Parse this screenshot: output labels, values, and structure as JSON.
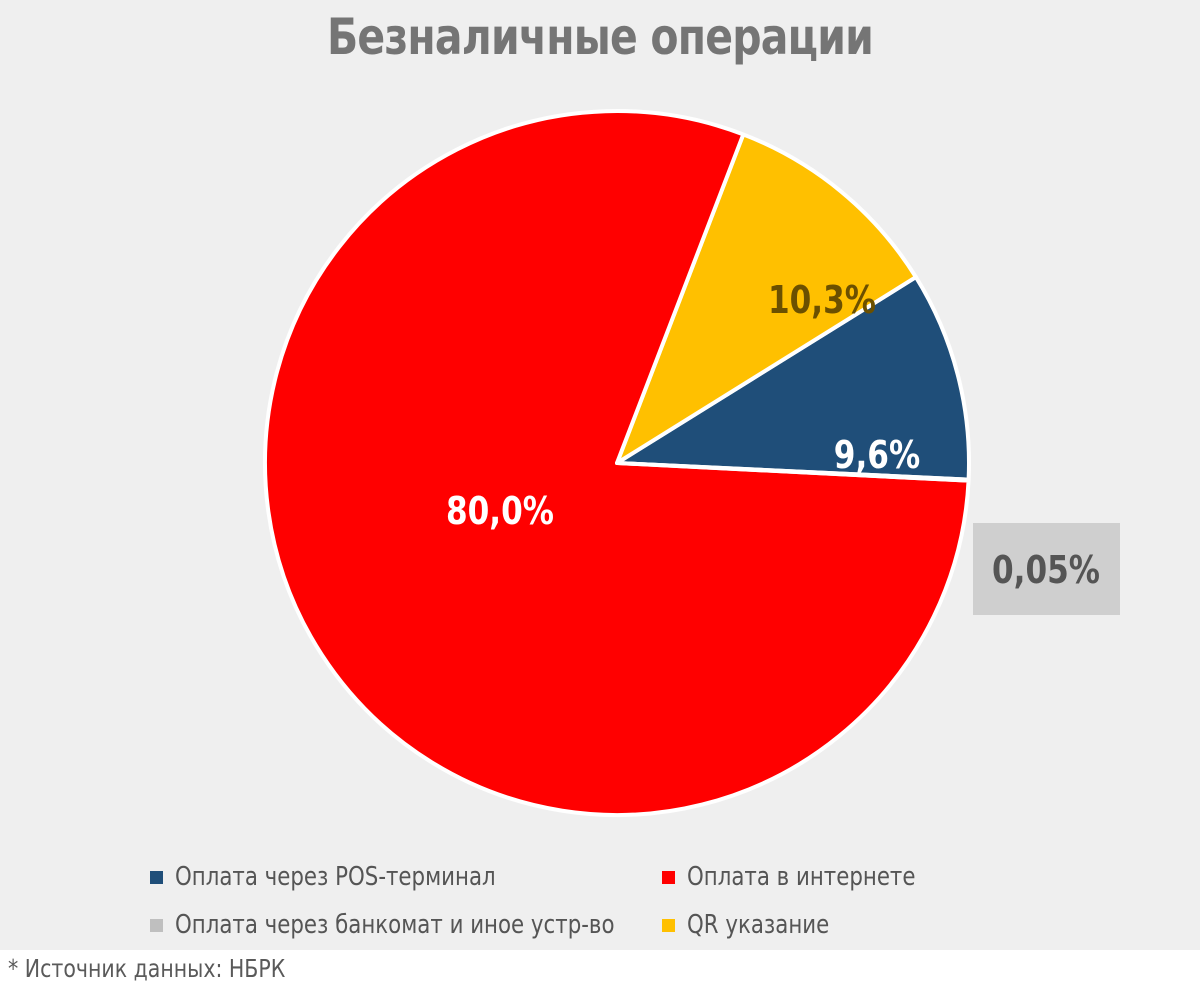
{
  "chart_data": {
    "type": "pie",
    "title": "Безналичные операции",
    "slices": [
      {
        "name": "Оплата через POS-терминал",
        "value": 9.6,
        "label": "9,6%",
        "color": "#1f4e79",
        "label_color": "#ffffff"
      },
      {
        "name": "QR указание",
        "value": 10.3,
        "label": "10,3%",
        "color": "#ffc000",
        "label_color": "#6b5000"
      },
      {
        "name": "Оплата в интернете",
        "value": 80.0,
        "label": "80,0%",
        "color": "#ff0000",
        "label_color": "#ffffff"
      },
      {
        "name": "Оплата через банкомат и иное устр-во",
        "value": 0.05,
        "label": "0,05%",
        "color": "#bfbfbf",
        "label_color": "#555555"
      }
    ],
    "legend_position": "bottom",
    "legend": [
      {
        "name": "Оплата через POS-терминал",
        "color": "#1f4e79"
      },
      {
        "name": "Оплата в интернете",
        "color": "#ff0000"
      },
      {
        "name": "Оплата через банкомат и иное устр-во",
        "color": "#bfbfbf"
      },
      {
        "name": "QR указание",
        "color": "#ffc000"
      }
    ],
    "source_note": "* Источник данных: НБРК"
  }
}
